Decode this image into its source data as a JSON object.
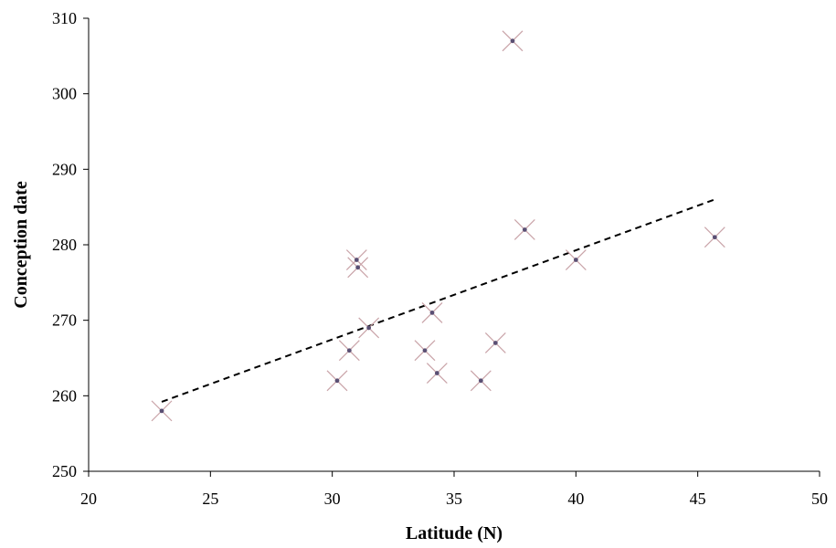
{
  "chart_data": {
    "type": "scatter",
    "title": "",
    "xlabel": "Latitude (N)",
    "ylabel": "Conception date",
    "xlim": [
      20,
      50
    ],
    "ylim": [
      250,
      310
    ],
    "x_ticks": [
      20,
      25,
      30,
      35,
      40,
      45,
      50
    ],
    "y_ticks": [
      250,
      260,
      270,
      280,
      290,
      300,
      310
    ],
    "grid": false,
    "legend": "none",
    "series": [
      {
        "points": [
          {
            "x": 23.0,
            "y": 258
          },
          {
            "x": 30.2,
            "y": 262
          },
          {
            "x": 30.7,
            "y": 266
          },
          {
            "x": 31.0,
            "y": 278
          },
          {
            "x": 31.05,
            "y": 277
          },
          {
            "x": 31.5,
            "y": 269
          },
          {
            "x": 33.8,
            "y": 266
          },
          {
            "x": 34.1,
            "y": 271
          },
          {
            "x": 34.3,
            "y": 263
          },
          {
            "x": 36.1,
            "y": 262
          },
          {
            "x": 36.7,
            "y": 267
          },
          {
            "x": 37.4,
            "y": 307
          },
          {
            "x": 37.9,
            "y": 282
          },
          {
            "x": 40.0,
            "y": 278
          },
          {
            "x": 45.7,
            "y": 281
          }
        ]
      }
    ],
    "trendline": {
      "style": "dashed",
      "x": [
        23.0,
        45.7
      ],
      "y": [
        259.2,
        286.0
      ]
    },
    "colors": {
      "marker_cross": "#c9a3a8",
      "marker_dot": "#5a4f73",
      "trendline": "#000000",
      "axis": "#000000"
    }
  }
}
